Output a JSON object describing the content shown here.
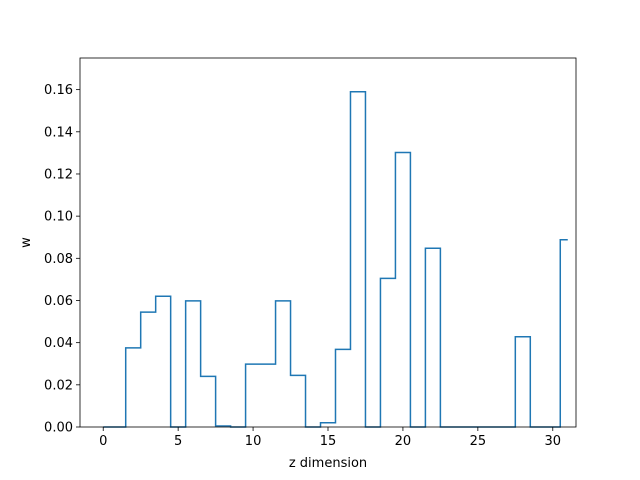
{
  "chart_data": {
    "type": "line",
    "drawstyle": "steps-mid",
    "xlabel": "z dimension",
    "ylabel": "w",
    "xlim": [
      -1.55,
      31.55
    ],
    "ylim": [
      0,
      0.175
    ],
    "xticks": [
      0,
      5,
      10,
      15,
      20,
      25,
      30
    ],
    "yticks": [
      0.0,
      0.02,
      0.04,
      0.06,
      0.08,
      0.1,
      0.12,
      0.14,
      0.16
    ],
    "ytick_labels": [
      "0.00",
      "0.02",
      "0.04",
      "0.06",
      "0.08",
      "0.10",
      "0.12",
      "0.14",
      "0.16"
    ],
    "grid": false,
    "legend": false,
    "color": "#1f77b4",
    "series": [
      {
        "x": [
          0,
          1,
          2,
          3,
          4,
          5,
          6,
          7,
          8,
          9,
          10,
          11,
          12,
          13,
          14,
          15,
          16,
          17,
          18,
          19,
          20,
          21,
          22,
          23,
          24,
          25,
          26,
          27,
          28,
          29,
          30,
          31
        ],
        "values": [
          0.0,
          0.0,
          0.0375,
          0.0545,
          0.062,
          0.0,
          0.0598,
          0.024,
          0.0005,
          0.0,
          0.0298,
          0.0298,
          0.0598,
          0.0245,
          0.0,
          0.002,
          0.0368,
          0.159,
          0.0,
          0.0705,
          0.1302,
          0.0,
          0.0848,
          0.0,
          0.0,
          0.0,
          0.0,
          0.0,
          0.0428,
          0.0,
          0.0,
          0.0888
        ]
      }
    ]
  }
}
